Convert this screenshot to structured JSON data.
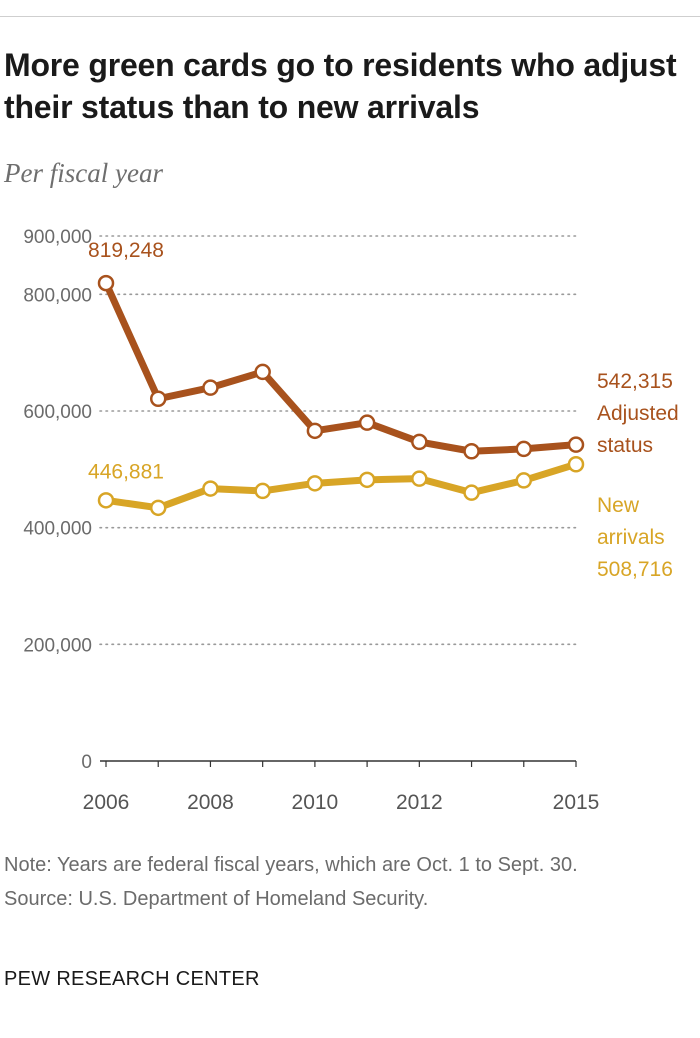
{
  "title": "More green cards go to residents who adjust their status than to new arrivals",
  "subtitle": "Per fiscal year",
  "note": "Note: Years are federal fiscal years, which are Oct. 1 to Sept. 30.",
  "source": "Source: U.S. Department of Homeland Security.",
  "footer": "PEW RESEARCH CENTER",
  "colors": {
    "adjusted": "#a8521d",
    "new_arrivals": "#d8a526",
    "grid": "#9a9a9a",
    "axis": "#333333"
  },
  "chart_data": {
    "type": "line",
    "x": [
      2006,
      2007,
      2008,
      2009,
      2010,
      2011,
      2012,
      2013,
      2014,
      2015
    ],
    "x_tick_labels": [
      "2006",
      "2008",
      "2010",
      "2012",
      "2015"
    ],
    "x_tick_values": [
      2006,
      2008,
      2010,
      2012,
      2015
    ],
    "y_ticks": [
      0,
      200000,
      400000,
      600000,
      800000,
      900000
    ],
    "y_tick_labels": [
      "0",
      "200,000",
      "400,000",
      "600,000",
      "800,000",
      "900,000"
    ],
    "ylim": [
      0,
      900000
    ],
    "grid": true,
    "series": [
      {
        "name": "Adjusted status",
        "label_line1": "Adjusted",
        "label_line2": "status",
        "values": [
          819248,
          621000,
          640000,
          667000,
          566000,
          580000,
          547000,
          531000,
          535000,
          542315
        ],
        "start_label": "819,248",
        "end_label": "542,315"
      },
      {
        "name": "New arrivals",
        "label_line1": "New",
        "label_line2": "arrivals",
        "values": [
          446881,
          434000,
          467000,
          463000,
          476000,
          482000,
          484000,
          460000,
          481000,
          508716
        ],
        "start_label": "446,881",
        "end_label": "508,716"
      }
    ]
  }
}
